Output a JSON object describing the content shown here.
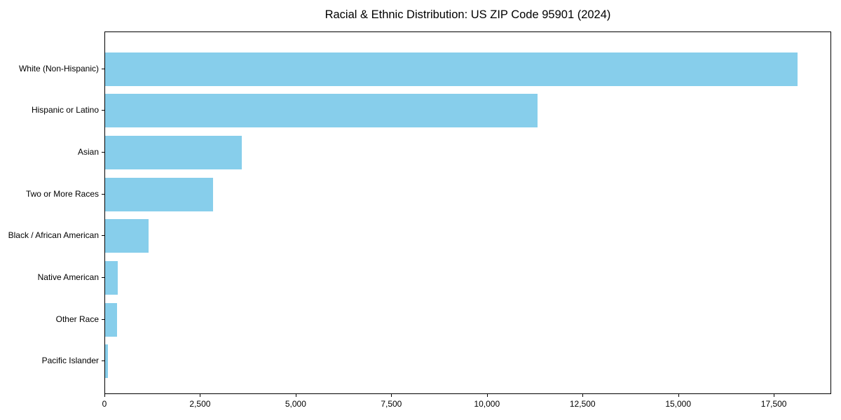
{
  "title": "Racial & Ethnic Distribution: US ZIP Code 95901 (2024)",
  "colors": {
    "bar": "#87CEEB",
    "axis": "#000000",
    "text": "#000000",
    "background": "#ffffff"
  },
  "chart_data": {
    "type": "bar",
    "orientation": "horizontal",
    "title": "Racial & Ethnic Distribution: US ZIP Code 95901 (2024)",
    "xlabel": "",
    "ylabel": "",
    "categories": [
      "White (Non-Hispanic)",
      "Hispanic or Latino",
      "Asian",
      "Two or More Races",
      "Black / African American",
      "Native American",
      "Other Race",
      "Pacific Islander"
    ],
    "values": [
      18100,
      11300,
      3580,
      2830,
      1140,
      330,
      320,
      80
    ],
    "xlim": [
      0,
      19000
    ],
    "x_ticks": [
      0,
      2500,
      5000,
      7500,
      10000,
      12500,
      15000,
      17500
    ],
    "x_tick_labels": [
      "0",
      "2,500",
      "5,000",
      "7,500",
      "10,000",
      "12,500",
      "15,000",
      "17,500"
    ],
    "bar_color": "#87CEEB",
    "grid": false,
    "legend": null
  }
}
